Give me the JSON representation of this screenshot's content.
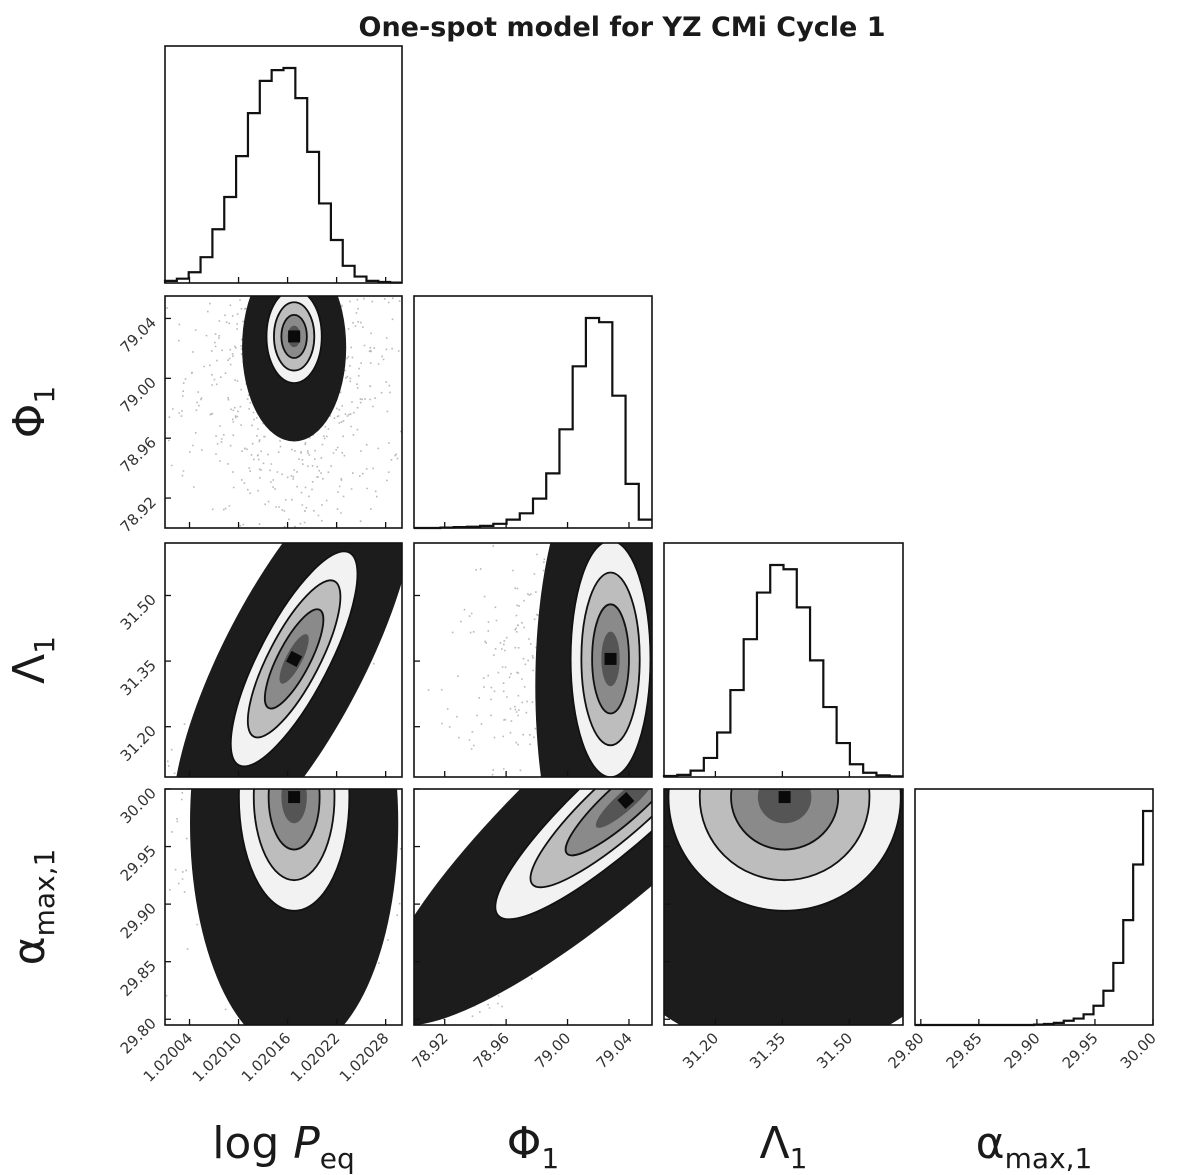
{
  "title": "One-spot model for YZ CMi Cycle 1",
  "chart_data": {
    "type": "corner",
    "title": "One-spot model for YZ CMi Cycle 1",
    "parameters": [
      {
        "id": "logP",
        "label_main": "log ",
        "label_italic": "P",
        "label_sub": "eq",
        "range": [
          1.02001,
          1.0203
        ],
        "ticks": [
          1.02004,
          1.0201,
          1.02016,
          1.02022,
          1.02028
        ],
        "tick_labels": [
          "1.02004",
          "1.02010",
          "1.02016",
          "1.02022",
          "1.02028"
        ],
        "mean": 1.020168,
        "sd": 3.3e-05,
        "skew": 0,
        "hist_rel": [
          0.01,
          0.02,
          0.05,
          0.12,
          0.25,
          0.4,
          0.59,
          0.79,
          0.94,
          0.99,
          1.0,
          0.86,
          0.61,
          0.37,
          0.2,
          0.08,
          0.03,
          0.01,
          0.005,
          0.002
        ]
      },
      {
        "id": "phi",
        "label_main": "Φ",
        "label_italic": "",
        "label_sub": "1",
        "range": [
          78.9,
          79.055
        ],
        "ticks": [
          78.92,
          78.96,
          79.0,
          79.04
        ],
        "tick_labels": [
          "78.92",
          "78.96",
          "79.00",
          "79.04"
        ],
        "mean": 79.028,
        "sd": 0.014,
        "skew": -0.8,
        "hist_rel": [
          0.0,
          0.0,
          0.002,
          0.004,
          0.006,
          0.01,
          0.02,
          0.04,
          0.07,
          0.14,
          0.26,
          0.47,
          0.77,
          1.0,
          0.98,
          0.63,
          0.21,
          0.04
        ]
      },
      {
        "id": "lambda",
        "label_main": "Λ",
        "label_italic": "",
        "label_sub": "1",
        "range": [
          31.085,
          31.62
        ],
        "ticks": [
          31.2,
          31.35,
          31.5
        ],
        "tick_labels": [
          "31.20",
          "31.35",
          "31.50"
        ],
        "mean": 31.355,
        "sd": 0.07,
        "skew": 0,
        "hist_rel": [
          0.005,
          0.01,
          0.03,
          0.09,
          0.21,
          0.41,
          0.65,
          0.87,
          1.0,
          0.98,
          0.8,
          0.55,
          0.33,
          0.16,
          0.06,
          0.02,
          0.008,
          0.003
        ]
      },
      {
        "id": "alpha",
        "label_main": "α",
        "label_italic": "",
        "label_sub": "max,1",
        "range": [
          29.795,
          30.0
        ],
        "ticks": [
          29.8,
          29.85,
          29.9,
          29.95,
          30.0
        ],
        "tick_labels": [
          "29.80",
          "29.85",
          "29.90",
          "29.95",
          "30.00"
        ],
        "mean": 29.993,
        "sd": 0.02,
        "skew": -1,
        "hist_rel": [
          0.0,
          0.0,
          0.0,
          0.0,
          0.0,
          0.0,
          0.0,
          0.0,
          0.0,
          0.0,
          0.0,
          0.0,
          0.002,
          0.005,
          0.01,
          0.02,
          0.03,
          0.05,
          0.09,
          0.16,
          0.29,
          0.49,
          0.75,
          1.0
        ]
      }
    ],
    "pairs": [
      {
        "row": "phi",
        "col": "logP",
        "corr": 0.0,
        "center": [
          1.020168,
          79.028
        ],
        "extent": [
          6.5e-05,
          0.06
        ],
        "scatter_sd": [
          3e-05,
          0.03
        ],
        "scatter_off": [
          0,
          -0.022
        ]
      },
      {
        "row": "lambda",
        "col": "logP",
        "corr": 0.85,
        "center": [
          1.020168,
          31.355
        ],
        "extent": [
          0.00013,
          0.55
        ],
        "scatter_sd": [
          3e-05,
          0.075
        ],
        "scatter_off": [
          0,
          0
        ]
      },
      {
        "row": "lambda",
        "col": "phi",
        "corr": 0.0,
        "center": [
          79.028,
          31.355
        ],
        "extent": [
          0.05,
          0.52
        ],
        "scatter_sd": [
          0.02,
          0.08
        ],
        "scatter_off": [
          -0.008,
          0
        ]
      },
      {
        "row": "alpha",
        "col": "logP",
        "corr": 0.0,
        "center": [
          1.020168,
          29.993
        ],
        "extent": [
          0.00013,
          0.19
        ],
        "scatter_sd": [
          3e-05,
          0.028
        ],
        "scatter_off": [
          0,
          -0.02
        ]
      },
      {
        "row": "alpha",
        "col": "phi",
        "corr": 0.96,
        "center": [
          79.038,
          29.99
        ],
        "extent": [
          0.16,
          0.2
        ],
        "scatter_sd": [
          0.022,
          0.035
        ],
        "scatter_off": [
          -0.02,
          -0.03
        ]
      },
      {
        "row": "alpha",
        "col": "lambda",
        "corr": 0.0,
        "center": [
          31.355,
          29.993
        ],
        "extent": [
          0.5,
          0.19
        ],
        "scatter_sd": [
          0.07,
          0.028
        ],
        "scatter_off": [
          0,
          -0.02
        ]
      }
    ],
    "contour_levels_sigma": [
      0.5,
      1.0,
      1.5,
      2.0
    ],
    "colors": {
      "line": "#111111",
      "density_dark": "#1c1c1c",
      "background": "#ffffff"
    }
  }
}
